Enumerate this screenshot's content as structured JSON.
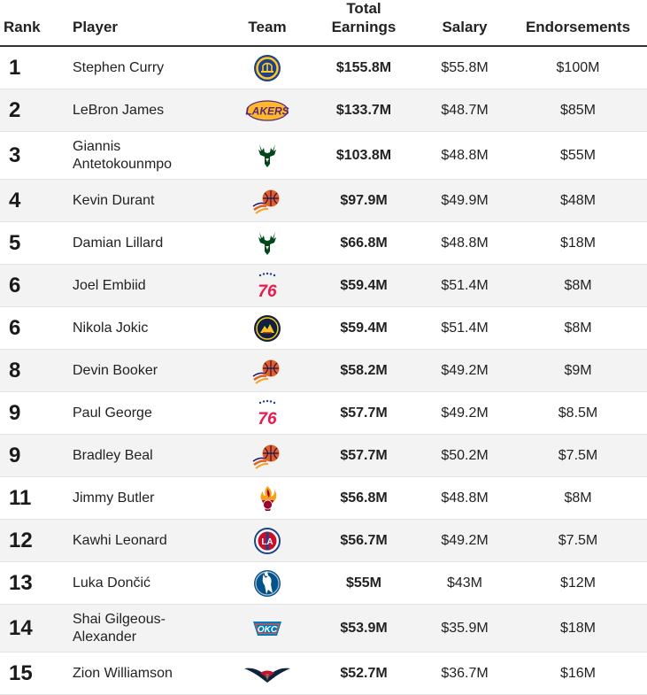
{
  "header": {
    "rank": "Rank",
    "player": "Player",
    "team": "Team",
    "total_line1": "Total",
    "total_line2": "Earnings",
    "salary": "Salary",
    "endorsements": "Endorsements"
  },
  "rows": [
    {
      "rank": "1",
      "player": "Stephen Curry",
      "team_icon": "warriors-logo-icon",
      "total": "$155.8M",
      "salary": "$55.8M",
      "endorsements": "$100M"
    },
    {
      "rank": "2",
      "player": "LeBron James",
      "team_icon": "lakers-logo-icon",
      "total": "$133.7M",
      "salary": "$48.7M",
      "endorsements": "$85M"
    },
    {
      "rank": "3",
      "player": "Giannis Antetokounmpo",
      "team_icon": "bucks-logo-icon",
      "total": "$103.8M",
      "salary": "$48.8M",
      "endorsements": "$55M"
    },
    {
      "rank": "4",
      "player": "Kevin Durant",
      "team_icon": "suns-logo-icon",
      "total": "$97.9M",
      "salary": "$49.9M",
      "endorsements": "$48M"
    },
    {
      "rank": "5",
      "player": "Damian Lillard",
      "team_icon": "bucks-logo-icon",
      "total": "$66.8M",
      "salary": "$48.8M",
      "endorsements": "$18M"
    },
    {
      "rank": "6",
      "player": "Joel Embiid",
      "team_icon": "76ers-logo-icon",
      "total": "$59.4M",
      "salary": "$51.4M",
      "endorsements": "$8M"
    },
    {
      "rank": "6",
      "player": "Nikola Jokic",
      "team_icon": "nuggets-logo-icon",
      "total": "$59.4M",
      "salary": "$51.4M",
      "endorsements": "$8M"
    },
    {
      "rank": "8",
      "player": "Devin Booker",
      "team_icon": "suns-logo-icon",
      "total": "$58.2M",
      "salary": "$49.2M",
      "endorsements": "$9M"
    },
    {
      "rank": "9",
      "player": "Paul George",
      "team_icon": "76ers-logo-icon",
      "total": "$57.7M",
      "salary": "$49.2M",
      "endorsements": "$8.5M"
    },
    {
      "rank": "9",
      "player": "Bradley Beal",
      "team_icon": "suns-logo-icon",
      "total": "$57.7M",
      "salary": "$50.2M",
      "endorsements": "$7.5M"
    },
    {
      "rank": "11",
      "player": "Jimmy Butler",
      "team_icon": "heat-logo-icon",
      "total": "$56.8M",
      "salary": "$48.8M",
      "endorsements": "$8M"
    },
    {
      "rank": "12",
      "player": "Kawhi Leonard",
      "team_icon": "clippers-logo-icon",
      "total": "$56.7M",
      "salary": "$49.2M",
      "endorsements": "$7.5M"
    },
    {
      "rank": "13",
      "player": "Luka Dončić",
      "team_icon": "mavericks-logo-icon",
      "total": "$55M",
      "salary": "$43M",
      "endorsements": "$12M"
    },
    {
      "rank": "14",
      "player": "Shai Gilgeous-Alexander",
      "team_icon": "thunder-logo-icon",
      "total": "$53.9M",
      "salary": "$35.9M",
      "endorsements": "$18M"
    },
    {
      "rank": "15",
      "player": "Zion Williamson",
      "team_icon": "pelicans-logo-icon",
      "total": "$52.7M",
      "salary": "$36.7M",
      "endorsements": "$16M"
    }
  ],
  "logo_text": {
    "lakers": "LAKERS",
    "sixers": "76",
    "clippers": "LA",
    "thunder": "OKC"
  }
}
